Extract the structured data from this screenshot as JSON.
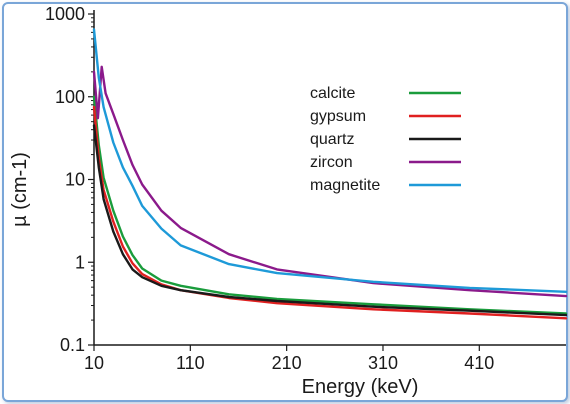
{
  "chart_data": {
    "type": "line",
    "title": "",
    "xlabel": "Energy (keV)",
    "ylabel": "µ (cm-1)",
    "xscale": "linear",
    "yscale": "log",
    "xlim": [
      10,
      500
    ],
    "ylim": [
      0.1,
      1000
    ],
    "xticks": [
      10,
      110,
      210,
      310,
      410
    ],
    "xtick_labels": [
      "10",
      "110",
      "210",
      "310",
      "410"
    ],
    "yticks": [
      0.1,
      1,
      10,
      100,
      1000
    ],
    "ytick_labels": [
      "0.1",
      "1",
      "10",
      "100",
      "1000"
    ],
    "grid": false,
    "legend_position": "top-right",
    "series": [
      {
        "name": "calcite",
        "color": "#1a9c3c",
        "x": [
          10,
          15,
          20,
          30,
          40,
          50,
          60,
          80,
          100,
          150,
          200,
          300,
          400,
          500
        ],
        "y": [
          100,
          26,
          10.5,
          4.2,
          2.05,
          1.22,
          0.84,
          0.6,
          0.52,
          0.41,
          0.36,
          0.31,
          0.27,
          0.24
        ]
      },
      {
        "name": "gypsum",
        "color": "#e02020",
        "x": [
          10,
          15,
          20,
          30,
          40,
          50,
          60,
          80,
          100,
          150,
          200,
          300,
          400,
          500
        ],
        "y": [
          75,
          18,
          7.5,
          3.1,
          1.55,
          0.97,
          0.72,
          0.54,
          0.46,
          0.37,
          0.32,
          0.27,
          0.24,
          0.21
        ]
      },
      {
        "name": "quartz",
        "color": "#1a1a1a",
        "x": [
          10,
          15,
          20,
          30,
          40,
          50,
          60,
          80,
          100,
          150,
          200,
          300,
          400,
          500
        ],
        "y": [
          45,
          14,
          5.8,
          2.35,
          1.25,
          0.82,
          0.66,
          0.52,
          0.46,
          0.38,
          0.34,
          0.29,
          0.26,
          0.23
        ]
      },
      {
        "name": "zircon",
        "color": "#8b1a8b",
        "x": [
          10,
          14,
          18,
          22,
          30,
          40,
          50,
          60,
          80,
          100,
          150,
          200,
          300,
          400,
          500
        ],
        "y": [
          200,
          55,
          230,
          110,
          62,
          30,
          15,
          8.7,
          4.2,
          2.6,
          1.25,
          0.82,
          0.56,
          0.46,
          0.39
        ]
      },
      {
        "name": "magnetite",
        "color": "#1e9ad8",
        "x": [
          10,
          15,
          20,
          30,
          40,
          50,
          60,
          80,
          100,
          150,
          200,
          300,
          400,
          500
        ],
        "y": [
          650,
          170,
          75,
          28,
          14,
          8.4,
          4.8,
          2.55,
          1.6,
          0.95,
          0.74,
          0.58,
          0.49,
          0.44
        ]
      }
    ]
  }
}
